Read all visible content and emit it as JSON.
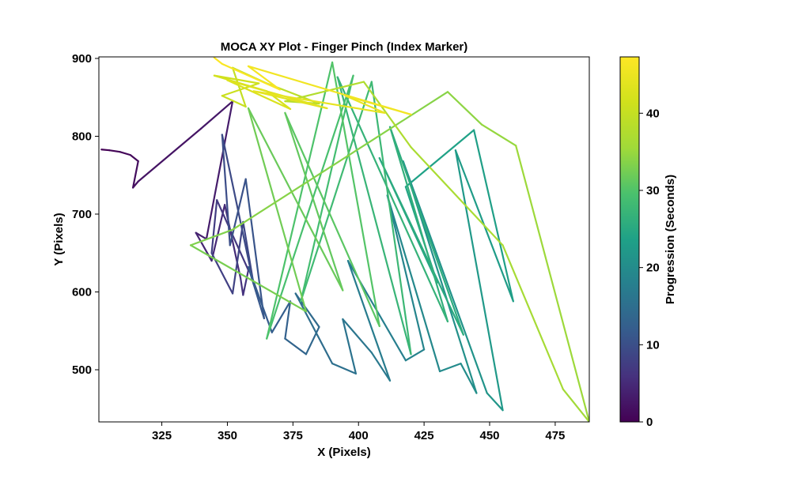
{
  "chart_data": {
    "type": "line",
    "title": "MOCA XY Plot - Finger Pinch (Index Marker)",
    "xlabel": "X (Pixels)",
    "ylabel": "Y (Pixels)",
    "xlim": [
      301,
      488
    ],
    "ylim": [
      433,
      902
    ],
    "xticks": [
      325,
      350,
      375,
      400,
      425,
      450,
      475
    ],
    "yticks": [
      500,
      600,
      700,
      800,
      900
    ],
    "grid": false,
    "colorbar": {
      "label": "Progression (Seconds)",
      "range": [
        0,
        47.3
      ],
      "ticks": [
        0,
        10,
        20,
        30,
        40
      ],
      "colormap": "viridis"
    },
    "trajectory": {
      "t": [
        0,
        0.3,
        0.6,
        0.9,
        1.2,
        1.6,
        2.0,
        2.5,
        3.0,
        3.5,
        4.0,
        4.5,
        5.0,
        5.5,
        6.0,
        6.5,
        7.0,
        7.5,
        8.0,
        8.5,
        9.0,
        9.5,
        10.0,
        10.5,
        11.0,
        11.5,
        12.0,
        12.5,
        13.0,
        13.5,
        14.0,
        14.5,
        15.0,
        15.5,
        16.0,
        16.5,
        17.0,
        17.5,
        18.0,
        18.5,
        19.0,
        19.5,
        20.0,
        20.5,
        21.0,
        21.5,
        22.0,
        22.5,
        23.0,
        23.5,
        24.0,
        24.5,
        25.0,
        25.5,
        26.0,
        26.5,
        27.0,
        27.5,
        28.0,
        28.5,
        29.0,
        29.5,
        30.0,
        30.5,
        31.0,
        31.5,
        32.0,
        32.5,
        33.0,
        33.5,
        34.0,
        34.5,
        35.0,
        35.5,
        36.0,
        36.5,
        37.0,
        37.5,
        38.0,
        38.5,
        39.0,
        39.5,
        40.0,
        40.5,
        41.0,
        41.5,
        42.0,
        42.5,
        43.0,
        43.5,
        44.0,
        44.5,
        45.0,
        45.5,
        46.0,
        46.5,
        47.0,
        47.3
      ],
      "x": [
        302,
        305,
        309,
        313,
        316,
        314,
        316,
        340,
        352,
        342,
        338,
        344,
        349,
        355,
        356,
        358,
        346,
        344,
        352,
        356,
        360,
        348,
        351,
        357,
        364,
        358,
        367,
        374,
        372,
        380,
        385,
        376,
        390,
        399,
        394,
        405,
        412,
        396,
        418,
        425,
        411,
        431,
        439,
        445,
        417,
        449,
        455,
        437,
        459,
        444,
        418,
        430,
        408,
        440,
        412,
        434,
        392,
        420,
        405,
        378,
        398,
        365,
        390,
        408,
        372,
        394,
        358,
        380,
        336,
        352,
        434,
        447,
        460,
        488,
        478,
        455,
        420,
        402,
        372,
        385,
        365,
        352,
        357,
        348,
        362,
        345,
        365,
        374,
        350,
        388,
        360,
        410,
        395,
        420,
        358,
        370,
        348,
        345
      ],
      "y": [
        783,
        782,
        780,
        776,
        768,
        734,
        742,
        810,
        845,
        668,
        676,
        640,
        712,
        618,
        596,
        628,
        718,
        650,
        598,
        690,
        610,
        802,
        660,
        745,
        566,
        632,
        548,
        588,
        540,
        520,
        555,
        598,
        508,
        495,
        565,
        522,
        486,
        640,
        512,
        526,
        724,
        498,
        508,
        470,
        768,
        470,
        448,
        782,
        588,
        808,
        735,
        612,
        772,
        545,
        812,
        562,
        876,
        520,
        870,
        588,
        878,
        540,
        895,
        556,
        830,
        602,
        836,
        575,
        660,
        680,
        857,
        815,
        788,
        433,
        475,
        660,
        786,
        870,
        845,
        842,
        868,
        888,
        838,
        852,
        868,
        878,
        858,
        835,
        872,
        836,
        858,
        830,
        852,
        828,
        890,
        860,
        893,
        901
      ]
    }
  }
}
